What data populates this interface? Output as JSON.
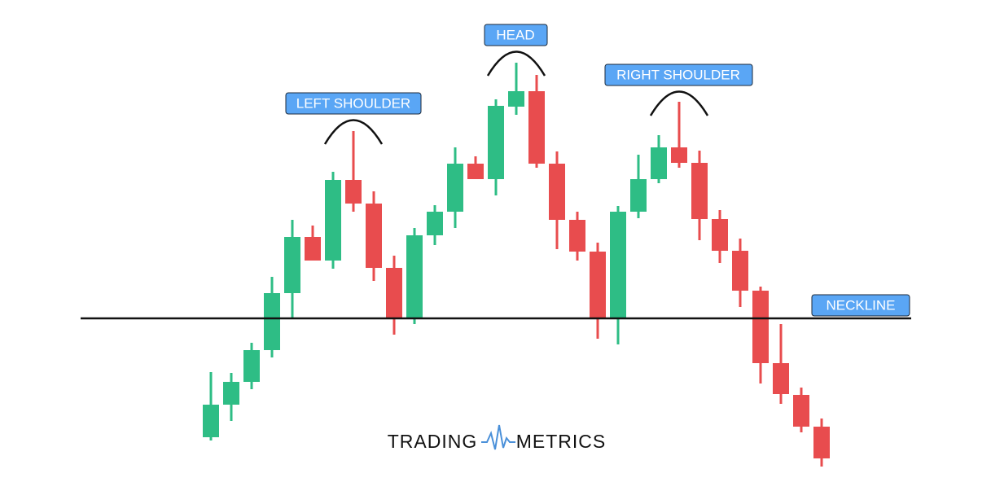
{
  "chart_data": {
    "type": "candlestick",
    "series": [
      {
        "up_color": "#2ebd85",
        "down_color": "#e84c4e",
        "open": [
          82,
          122,
          150,
          189,
          259,
          328,
          299,
          398,
          369,
          290,
          228,
          330,
          359,
          418,
          399,
          488,
          507,
          418,
          349,
          310,
          228,
          359,
          399,
          438,
          419,
          350,
          311,
          262,
          173,
          134,
          95
        ],
        "high": [
          162,
          161,
          198,
          279,
          349,
          342,
          408,
          458,
          384,
          305,
          339,
          367,
          438,
          427,
          497,
          542,
          527,
          433,
          359,
          321,
          366,
          429,
          453,
          494,
          434,
          361,
          326,
          267,
          221,
          143,
          105
        ],
        "low": [
          78,
          102,
          141,
          180,
          228,
          299,
          289,
          359,
          274,
          208,
          221,
          318,
          339,
          399,
          379,
          478,
          413,
          313,
          299,
          203,
          196,
          351,
          394,
          413,
          324,
          296,
          242,
          148,
          123,
          88,
          46
        ],
        "close": [
          122,
          150,
          189,
          259,
          328,
          299,
          398,
          369,
          290,
          228,
          330,
          359,
          418,
          399,
          489,
          507,
          418,
          349,
          310,
          228,
          359,
          399,
          438,
          419,
          350,
          311,
          262,
          173,
          135,
          95,
          56
        ]
      }
    ],
    "neckline": {
      "value": 228,
      "label": "NECKLINE"
    },
    "annotations": [
      "LEFT SHOULDER",
      "HEAD",
      "RIGHT SHOULDER"
    ],
    "watermark": [
      "TRADING",
      "METRICS"
    ]
  }
}
